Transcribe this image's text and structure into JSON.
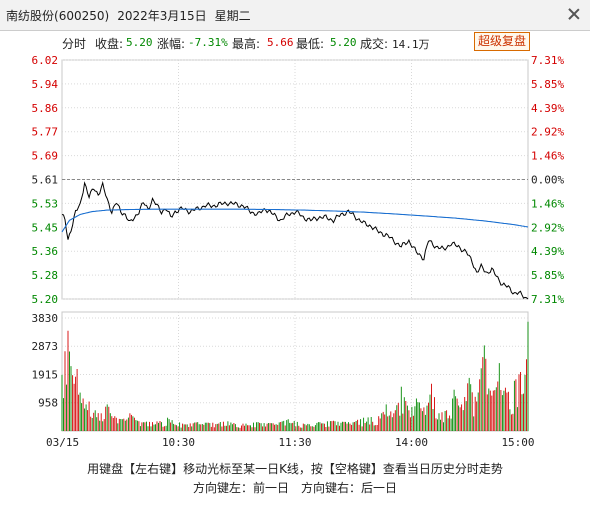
{
  "window": {
    "title_name": "南纺股份",
    "title_code": "(600250)",
    "title_date": "2022年3月15日",
    "title_weekday": "星期二"
  },
  "infobar": {
    "mode_label": "分时",
    "close_label": "收盘:",
    "close_value": "5.20",
    "change_label": "涨幅:",
    "change_value": "-7.31%",
    "high_label": "最高:",
    "high_value": "5.66",
    "low_label": "最低:",
    "low_value": "5.20",
    "volume_label": "成交:",
    "volume_value": "14.1万",
    "fuquan_button": "超级复盘"
  },
  "colors": {
    "up": "#d40000",
    "down": "#008800",
    "price_line": "#000000",
    "avg_line": "#1a6fd0",
    "grid": "#d9d9d9"
  },
  "chart_data": {
    "type": "line",
    "price_axis": {
      "left_ticks": [
        "6.02",
        "5.94",
        "5.86",
        "5.77",
        "5.69",
        "5.61",
        "5.53",
        "5.45",
        "5.36",
        "5.28",
        "5.20"
      ],
      "left_tick_colors": [
        "up",
        "up",
        "up",
        "up",
        "up",
        "neutral",
        "down",
        "down",
        "down",
        "down",
        "down"
      ],
      "right_ticks": [
        "7.31%",
        "5.85%",
        "4.39%",
        "2.92%",
        "1.46%",
        "0.00%",
        "1.46%",
        "2.92%",
        "4.39%",
        "5.85%",
        "7.31%"
      ],
      "ylim": [
        5.2,
        6.02
      ],
      "prev_close": 5.61
    },
    "volume_axis": {
      "ticks": [
        "3830",
        "2873",
        "1915",
        "958"
      ],
      "ylim": [
        0,
        3830
      ]
    },
    "x_ticks": [
      "03/15",
      "10:30",
      "11:30",
      "14:00",
      "15:00"
    ],
    "price_keypoints": [
      [
        0,
        5.49
      ],
      [
        2,
        5.47
      ],
      [
        4,
        5.4
      ],
      [
        6,
        5.44
      ],
      [
        9,
        5.5
      ],
      [
        12,
        5.52
      ],
      [
        15,
        5.6
      ],
      [
        18,
        5.55
      ],
      [
        21,
        5.58
      ],
      [
        24,
        5.56
      ],
      [
        27,
        5.59
      ],
      [
        30,
        5.54
      ],
      [
        33,
        5.5
      ],
      [
        36,
        5.53
      ],
      [
        39,
        5.5
      ],
      [
        42,
        5.49
      ],
      [
        45,
        5.46
      ],
      [
        48,
        5.48
      ],
      [
        51,
        5.5
      ],
      [
        54,
        5.53
      ],
      [
        57,
        5.51
      ],
      [
        60,
        5.54
      ],
      [
        63,
        5.52
      ],
      [
        66,
        5.5
      ],
      [
        69,
        5.51
      ],
      [
        72,
        5.48
      ],
      [
        75,
        5.5
      ],
      [
        80,
        5.51
      ],
      [
        85,
        5.5
      ],
      [
        90,
        5.51
      ],
      [
        95,
        5.52
      ],
      [
        100,
        5.52
      ],
      [
        110,
        5.53
      ],
      [
        120,
        5.52
      ],
      [
        125,
        5.5
      ],
      [
        130,
        5.49
      ],
      [
        135,
        5.51
      ],
      [
        140,
        5.49
      ],
      [
        145,
        5.47
      ],
      [
        150,
        5.49
      ],
      [
        155,
        5.5
      ],
      [
        160,
        5.48
      ],
      [
        165,
        5.47
      ],
      [
        170,
        5.48
      ],
      [
        175,
        5.48
      ],
      [
        180,
        5.47
      ],
      [
        185,
        5.49
      ],
      [
        190,
        5.5
      ],
      [
        195,
        5.48
      ],
      [
        200,
        5.46
      ],
      [
        205,
        5.45
      ],
      [
        210,
        5.43
      ],
      [
        215,
        5.42
      ],
      [
        220,
        5.4
      ],
      [
        225,
        5.38
      ],
      [
        230,
        5.4
      ],
      [
        235,
        5.36
      ],
      [
        240,
        5.34
      ],
      [
        243,
        5.4
      ],
      [
        248,
        5.38
      ],
      [
        253,
        5.37
      ],
      [
        258,
        5.39
      ],
      [
        263,
        5.38
      ],
      [
        268,
        5.36
      ],
      [
        272,
        5.33
      ],
      [
        275,
        5.29
      ],
      [
        278,
        5.31
      ],
      [
        282,
        5.29
      ],
      [
        285,
        5.3
      ],
      [
        288,
        5.28
      ],
      [
        292,
        5.25
      ],
      [
        296,
        5.24
      ],
      [
        300,
        5.22
      ],
      [
        303,
        5.22
      ],
      [
        306,
        5.21
      ],
      [
        309,
        5.2
      ]
    ],
    "avg_keypoints": [
      [
        0,
        5.43
      ],
      [
        5,
        5.47
      ],
      [
        12,
        5.49
      ],
      [
        20,
        5.5
      ],
      [
        30,
        5.505
      ],
      [
        45,
        5.507
      ],
      [
        60,
        5.508
      ],
      [
        80,
        5.508
      ],
      [
        100,
        5.508
      ],
      [
        120,
        5.508
      ],
      [
        140,
        5.507
      ],
      [
        160,
        5.505
      ],
      [
        180,
        5.502
      ],
      [
        200,
        5.498
      ],
      [
        220,
        5.492
      ],
      [
        240,
        5.485
      ],
      [
        260,
        5.478
      ],
      [
        280,
        5.468
      ],
      [
        300,
        5.455
      ],
      [
        309,
        5.447
      ]
    ],
    "volume_keypoints": [
      [
        0,
        1900,
        "down"
      ],
      [
        2,
        2700,
        "up"
      ],
      [
        4,
        3400,
        "up"
      ],
      [
        6,
        2200,
        "down"
      ],
      [
        8,
        1600,
        "up"
      ],
      [
        10,
        2100,
        "up"
      ],
      [
        12,
        1300,
        "down"
      ],
      [
        14,
        1100,
        "up"
      ],
      [
        16,
        900,
        "down"
      ],
      [
        18,
        1000,
        "up"
      ],
      [
        22,
        700,
        "down"
      ],
      [
        26,
        600,
        "up"
      ],
      [
        30,
        900,
        "down"
      ],
      [
        35,
        500,
        "up"
      ],
      [
        40,
        400,
        "down"
      ],
      [
        45,
        600,
        "up"
      ],
      [
        50,
        350,
        "down"
      ],
      [
        60,
        300,
        "up"
      ],
      [
        70,
        450,
        "down"
      ],
      [
        80,
        250,
        "up"
      ],
      [
        90,
        300,
        "down"
      ],
      [
        100,
        280,
        "up"
      ],
      [
        110,
        330,
        "down"
      ],
      [
        120,
        250,
        "up"
      ],
      [
        130,
        300,
        "down"
      ],
      [
        140,
        260,
        "up"
      ],
      [
        150,
        400,
        "down"
      ],
      [
        160,
        250,
        "up"
      ],
      [
        170,
        300,
        "down"
      ],
      [
        180,
        350,
        "up"
      ],
      [
        190,
        300,
        "down"
      ],
      [
        200,
        450,
        "down"
      ],
      [
        210,
        500,
        "up"
      ],
      [
        215,
        900,
        "down"
      ],
      [
        220,
        600,
        "up"
      ],
      [
        225,
        1500,
        "down"
      ],
      [
        230,
        700,
        "up"
      ],
      [
        235,
        1100,
        "down"
      ],
      [
        240,
        800,
        "up"
      ],
      [
        245,
        1600,
        "up"
      ],
      [
        250,
        600,
        "down"
      ],
      [
        255,
        700,
        "up"
      ],
      [
        260,
        1400,
        "down"
      ],
      [
        265,
        900,
        "up"
      ],
      [
        270,
        1800,
        "down"
      ],
      [
        275,
        1000,
        "up"
      ],
      [
        280,
        2900,
        "down"
      ],
      [
        285,
        1200,
        "up"
      ],
      [
        290,
        2300,
        "down"
      ],
      [
        295,
        1300,
        "up"
      ],
      [
        300,
        1700,
        "down"
      ],
      [
        304,
        2000,
        "up"
      ],
      [
        307,
        1900,
        "down"
      ],
      [
        309,
        3700,
        "down"
      ]
    ]
  },
  "hints": {
    "line1": "用键盘【左右键】移动光标至某一日K线，按【空格键】查看当日历史分时走势",
    "line2": "方向键左：前一日　方向键右：后一日"
  }
}
